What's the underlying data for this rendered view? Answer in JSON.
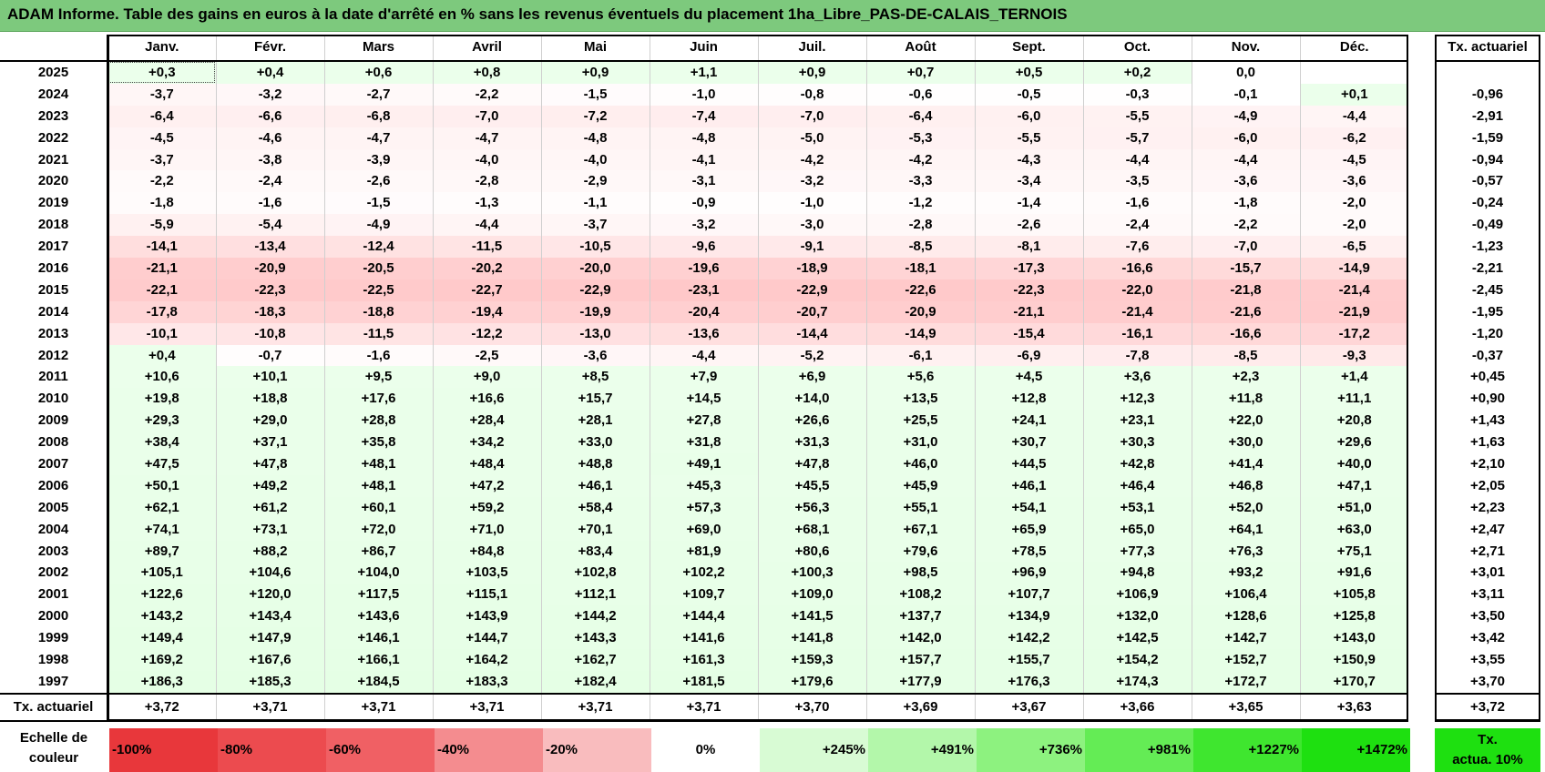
{
  "title": "ADAM Informe. Table des gains en euros à la date d'arrêté en % sans les revenus éventuels du placement 1ha_Libre_PAS-DE-CALAIS_TERNOIS",
  "months": [
    "Janv.",
    "Févr.",
    "Mars",
    "Avril",
    "Mai",
    "Juin",
    "Juil.",
    "Août",
    "Sept.",
    "Oct.",
    "Nov.",
    "Déc."
  ],
  "right_header": "Tx. actuariel",
  "rows": [
    {
      "year": "2025",
      "values": [
        "+0,3",
        "+0,4",
        "+0,6",
        "+0,8",
        "+0,9",
        "+1,1",
        "+0,9",
        "+0,7",
        "+0,5",
        "+0,2",
        "0,0",
        ""
      ],
      "tx": ""
    },
    {
      "year": "2024",
      "values": [
        "-3,7",
        "-3,2",
        "-2,7",
        "-2,2",
        "-1,5",
        "-1,0",
        "-0,8",
        "-0,6",
        "-0,5",
        "-0,3",
        "-0,1",
        "+0,1"
      ],
      "tx": "-0,96"
    },
    {
      "year": "2023",
      "values": [
        "-6,4",
        "-6,6",
        "-6,8",
        "-7,0",
        "-7,2",
        "-7,4",
        "-7,0",
        "-6,4",
        "-6,0",
        "-5,5",
        "-4,9",
        "-4,4"
      ],
      "tx": "-2,91"
    },
    {
      "year": "2022",
      "values": [
        "-4,5",
        "-4,6",
        "-4,7",
        "-4,7",
        "-4,8",
        "-4,8",
        "-5,0",
        "-5,3",
        "-5,5",
        "-5,7",
        "-6,0",
        "-6,2"
      ],
      "tx": "-1,59"
    },
    {
      "year": "2021",
      "values": [
        "-3,7",
        "-3,8",
        "-3,9",
        "-4,0",
        "-4,0",
        "-4,1",
        "-4,2",
        "-4,2",
        "-4,3",
        "-4,4",
        "-4,4",
        "-4,5"
      ],
      "tx": "-0,94"
    },
    {
      "year": "2020",
      "values": [
        "-2,2",
        "-2,4",
        "-2,6",
        "-2,8",
        "-2,9",
        "-3,1",
        "-3,2",
        "-3,3",
        "-3,4",
        "-3,5",
        "-3,6",
        "-3,6"
      ],
      "tx": "-0,57"
    },
    {
      "year": "2019",
      "values": [
        "-1,8",
        "-1,6",
        "-1,5",
        "-1,3",
        "-1,1",
        "-0,9",
        "-1,0",
        "-1,2",
        "-1,4",
        "-1,6",
        "-1,8",
        "-2,0"
      ],
      "tx": "-0,24"
    },
    {
      "year": "2018",
      "values": [
        "-5,9",
        "-5,4",
        "-4,9",
        "-4,4",
        "-3,7",
        "-3,2",
        "-3,0",
        "-2,8",
        "-2,6",
        "-2,4",
        "-2,2",
        "-2,0"
      ],
      "tx": "-0,49"
    },
    {
      "year": "2017",
      "values": [
        "-14,1",
        "-13,4",
        "-12,4",
        "-11,5",
        "-10,5",
        "-9,6",
        "-9,1",
        "-8,5",
        "-8,1",
        "-7,6",
        "-7,0",
        "-6,5"
      ],
      "tx": "-1,23"
    },
    {
      "year": "2016",
      "values": [
        "-21,1",
        "-20,9",
        "-20,5",
        "-20,2",
        "-20,0",
        "-19,6",
        "-18,9",
        "-18,1",
        "-17,3",
        "-16,6",
        "-15,7",
        "-14,9"
      ],
      "tx": "-2,21"
    },
    {
      "year": "2015",
      "values": [
        "-22,1",
        "-22,3",
        "-22,5",
        "-22,7",
        "-22,9",
        "-23,1",
        "-22,9",
        "-22,6",
        "-22,3",
        "-22,0",
        "-21,8",
        "-21,4"
      ],
      "tx": "-2,45"
    },
    {
      "year": "2014",
      "values": [
        "-17,8",
        "-18,3",
        "-18,8",
        "-19,4",
        "-19,9",
        "-20,4",
        "-20,7",
        "-20,9",
        "-21,1",
        "-21,4",
        "-21,6",
        "-21,9"
      ],
      "tx": "-1,95"
    },
    {
      "year": "2013",
      "values": [
        "-10,1",
        "-10,8",
        "-11,5",
        "-12,2",
        "-13,0",
        "-13,6",
        "-14,4",
        "-14,9",
        "-15,4",
        "-16,1",
        "-16,6",
        "-17,2"
      ],
      "tx": "-1,20"
    },
    {
      "year": "2012",
      "values": [
        "+0,4",
        "-0,7",
        "-1,6",
        "-2,5",
        "-3,6",
        "-4,4",
        "-5,2",
        "-6,1",
        "-6,9",
        "-7,8",
        "-8,5",
        "-9,3"
      ],
      "tx": "-0,37"
    },
    {
      "year": "2011",
      "values": [
        "+10,6",
        "+10,1",
        "+9,5",
        "+9,0",
        "+8,5",
        "+7,9",
        "+6,9",
        "+5,6",
        "+4,5",
        "+3,6",
        "+2,3",
        "+1,4"
      ],
      "tx": "+0,45"
    },
    {
      "year": "2010",
      "values": [
        "+19,8",
        "+18,8",
        "+17,6",
        "+16,6",
        "+15,7",
        "+14,5",
        "+14,0",
        "+13,5",
        "+12,8",
        "+12,3",
        "+11,8",
        "+11,1"
      ],
      "tx": "+0,90"
    },
    {
      "year": "2009",
      "values": [
        "+29,3",
        "+29,0",
        "+28,8",
        "+28,4",
        "+28,1",
        "+27,8",
        "+26,6",
        "+25,5",
        "+24,1",
        "+23,1",
        "+22,0",
        "+20,8"
      ],
      "tx": "+1,43"
    },
    {
      "year": "2008",
      "values": [
        "+38,4",
        "+37,1",
        "+35,8",
        "+34,2",
        "+33,0",
        "+31,8",
        "+31,3",
        "+31,0",
        "+30,7",
        "+30,3",
        "+30,0",
        "+29,6"
      ],
      "tx": "+1,63"
    },
    {
      "year": "2007",
      "values": [
        "+47,5",
        "+47,8",
        "+48,1",
        "+48,4",
        "+48,8",
        "+49,1",
        "+47,8",
        "+46,0",
        "+44,5",
        "+42,8",
        "+41,4",
        "+40,0"
      ],
      "tx": "+2,10"
    },
    {
      "year": "2006",
      "values": [
        "+50,1",
        "+49,2",
        "+48,1",
        "+47,2",
        "+46,1",
        "+45,3",
        "+45,5",
        "+45,9",
        "+46,1",
        "+46,4",
        "+46,8",
        "+47,1"
      ],
      "tx": "+2,05"
    },
    {
      "year": "2005",
      "values": [
        "+62,1",
        "+61,2",
        "+60,1",
        "+59,2",
        "+58,4",
        "+57,3",
        "+56,3",
        "+55,1",
        "+54,1",
        "+53,1",
        "+52,0",
        "+51,0"
      ],
      "tx": "+2,23"
    },
    {
      "year": "2004",
      "values": [
        "+74,1",
        "+73,1",
        "+72,0",
        "+71,0",
        "+70,1",
        "+69,0",
        "+68,1",
        "+67,1",
        "+65,9",
        "+65,0",
        "+64,1",
        "+63,0"
      ],
      "tx": "+2,47"
    },
    {
      "year": "2003",
      "values": [
        "+89,7",
        "+88,2",
        "+86,7",
        "+84,8",
        "+83,4",
        "+81,9",
        "+80,6",
        "+79,6",
        "+78,5",
        "+77,3",
        "+76,3",
        "+75,1"
      ],
      "tx": "+2,71"
    },
    {
      "year": "2002",
      "values": [
        "+105,1",
        "+104,6",
        "+104,0",
        "+103,5",
        "+102,8",
        "+102,2",
        "+100,3",
        "+98,5",
        "+96,9",
        "+94,8",
        "+93,2",
        "+91,6"
      ],
      "tx": "+3,01"
    },
    {
      "year": "2001",
      "values": [
        "+122,6",
        "+120,0",
        "+117,5",
        "+115,1",
        "+112,1",
        "+109,7",
        "+109,0",
        "+108,2",
        "+107,7",
        "+106,9",
        "+106,4",
        "+105,8"
      ],
      "tx": "+3,11"
    },
    {
      "year": "2000",
      "values": [
        "+143,2",
        "+143,4",
        "+143,6",
        "+143,9",
        "+144,2",
        "+144,4",
        "+141,5",
        "+137,7",
        "+134,9",
        "+132,0",
        "+128,6",
        "+125,8"
      ],
      "tx": "+3,50"
    },
    {
      "year": "1999",
      "values": [
        "+149,4",
        "+147,9",
        "+146,1",
        "+144,7",
        "+143,3",
        "+141,6",
        "+141,8",
        "+142,0",
        "+142,2",
        "+142,5",
        "+142,7",
        "+143,0"
      ],
      "tx": "+3,42"
    },
    {
      "year": "1998",
      "values": [
        "+169,2",
        "+167,6",
        "+166,1",
        "+164,2",
        "+162,7",
        "+161,3",
        "+159,3",
        "+157,7",
        "+155,7",
        "+154,2",
        "+152,7",
        "+150,9"
      ],
      "tx": "+3,55"
    },
    {
      "year": "1997",
      "values": [
        "+186,3",
        "+185,3",
        "+184,5",
        "+183,3",
        "+182,4",
        "+181,5",
        "+179,6",
        "+177,9",
        "+176,3",
        "+174,3",
        "+172,7",
        "+170,7"
      ],
      "tx": "+3,70"
    }
  ],
  "actuariel_row": {
    "label": "Tx. actuariel",
    "values": [
      "+3,72",
      "+3,71",
      "+3,71",
      "+3,71",
      "+3,71",
      "+3,71",
      "+3,70",
      "+3,69",
      "+3,67",
      "+3,66",
      "+3,65",
      "+3,63"
    ],
    "tx": "+3,72"
  },
  "scale": {
    "label_line1": "Echelle de",
    "label_line2": "couleur",
    "cells": [
      {
        "text": "-100%",
        "color": "#e8373b",
        "align": "left"
      },
      {
        "text": "-80%",
        "color": "#ec4b4f",
        "align": "left"
      },
      {
        "text": "-60%",
        "color": "#f06064",
        "align": "left"
      },
      {
        "text": "-40%",
        "color": "#f48c8f",
        "align": "left"
      },
      {
        "text": "-20%",
        "color": "#f9bcbe",
        "align": "left"
      },
      {
        "text": "0%",
        "color": "#ffffff",
        "align": "center"
      },
      {
        "text": "+245%",
        "color": "#d8fbd4",
        "align": "right"
      },
      {
        "text": "+491%",
        "color": "#b3f7aa",
        "align": "right"
      },
      {
        "text": "+736%",
        "color": "#8df27f",
        "align": "right"
      },
      {
        "text": "+981%",
        "color": "#64ec55",
        "align": "right"
      },
      {
        "text": "+1227%",
        "color": "#3fe62f",
        "align": "right"
      },
      {
        "text": "+1472%",
        "color": "#1ee010",
        "align": "right"
      }
    ],
    "last_line1": "Tx.",
    "last_line2": "actua. 10%",
    "last_color": "#1ee010"
  }
}
